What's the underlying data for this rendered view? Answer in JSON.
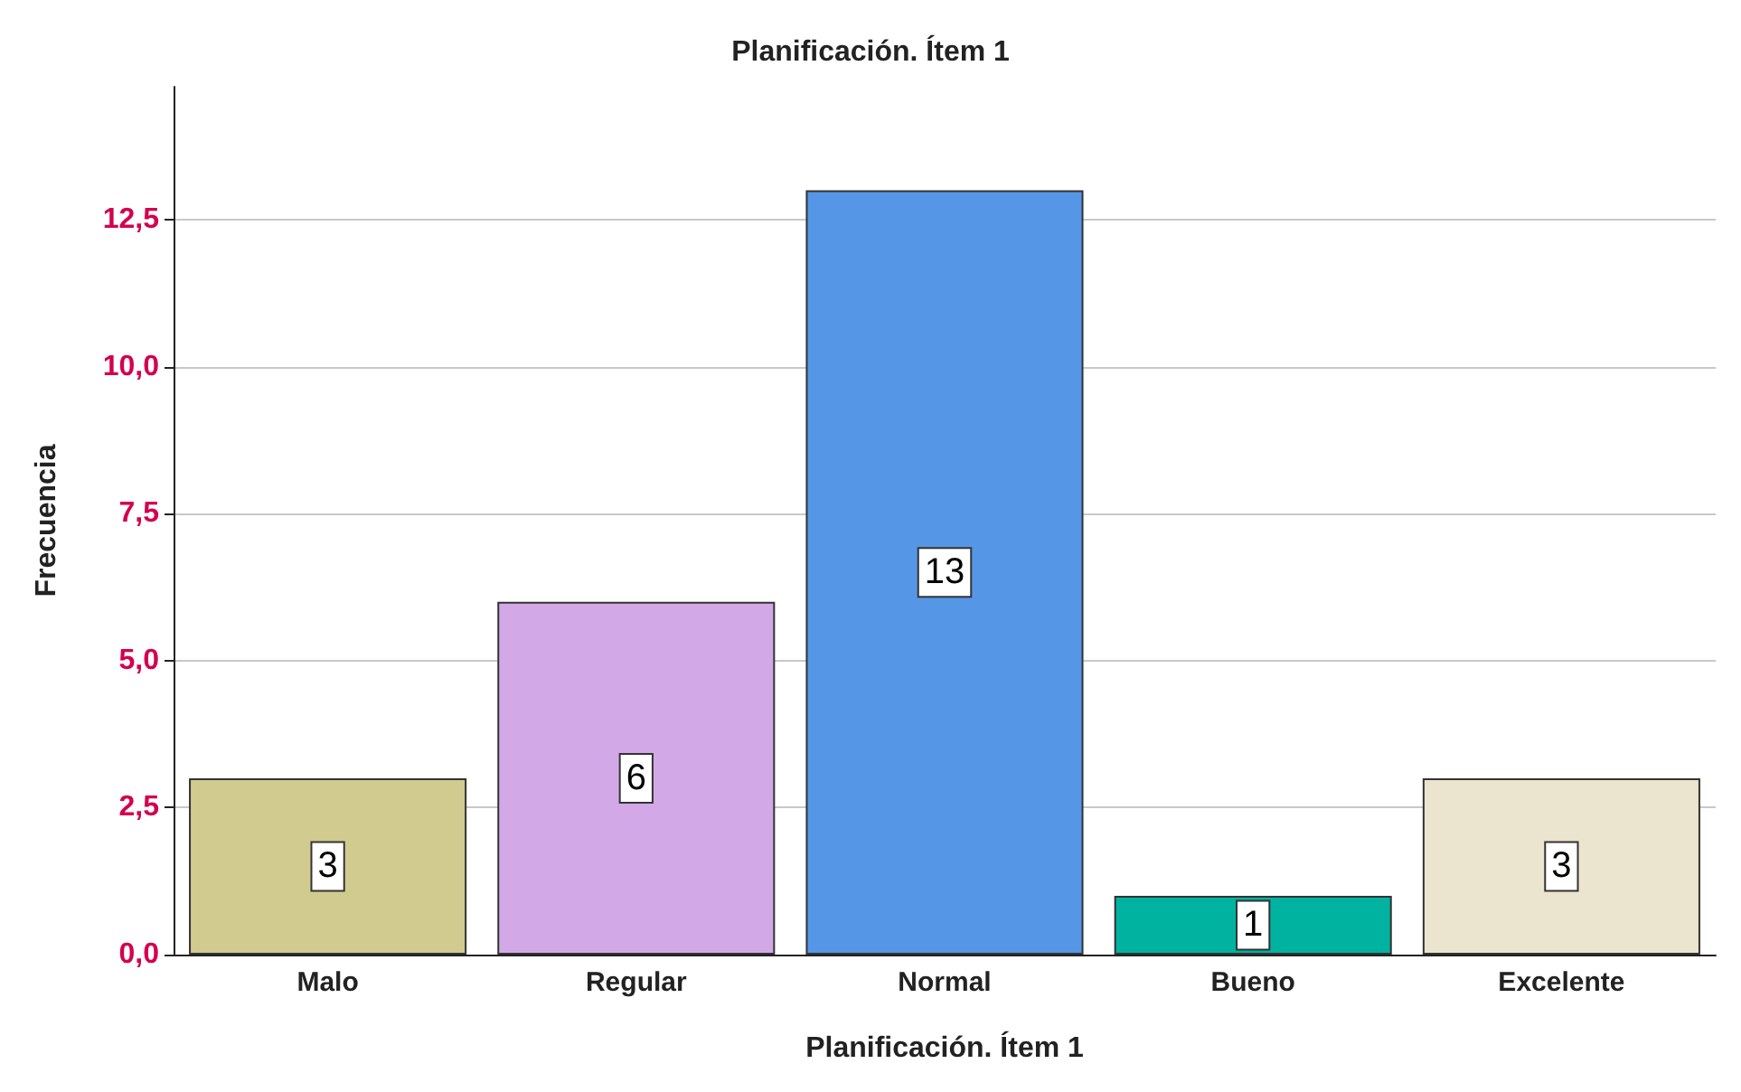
{
  "chart_data": {
    "type": "bar",
    "title": "Planificación. Ítem 1",
    "xlabel": "Planificación. Ítem 1",
    "ylabel": "Frecuencia",
    "categories": [
      "Malo",
      "Regular",
      "Normal",
      "Bueno",
      "Excelente"
    ],
    "values": [
      3,
      6,
      13,
      1,
      3
    ],
    "colors": [
      "#d1cb8f",
      "#d2a9e6",
      "#5596e6",
      "#00b3a0",
      "#ebe5cf"
    ],
    "ylim": [
      0,
      14.76
    ],
    "yticks": [
      {
        "value": 0,
        "label": "0,0"
      },
      {
        "value": 2.5,
        "label": "2,5"
      },
      {
        "value": 5,
        "label": "5,0"
      },
      {
        "value": 7.5,
        "label": "7,5"
      },
      {
        "value": 10,
        "label": "10,0"
      },
      {
        "value": 12.5,
        "label": "12,5"
      }
    ],
    "grid": "y",
    "data_labels": true
  }
}
